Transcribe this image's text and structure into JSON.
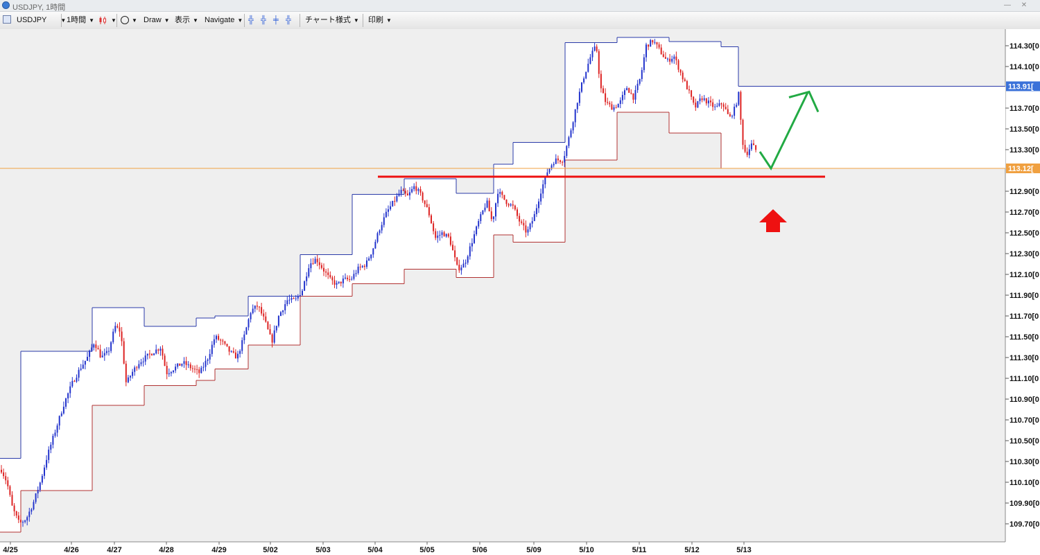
{
  "window": {
    "title": "USDJPY, 1時間"
  },
  "toolbar": {
    "symbol": "USDJPY",
    "timeframe": "1時間",
    "draw": "Draw",
    "view": "表示",
    "navigate": "Navigate",
    "chart_style": "チャート様式",
    "print": "印刷"
  },
  "icons": {
    "app": "app-icon",
    "candle": "candlestick-icon",
    "circle": "circle-tool-icon",
    "crosshair": "crosshair-icon",
    "minimize": "minimize-icon",
    "close": "close-icon"
  },
  "colors": {
    "bull": "#2233cc",
    "bear": "#dd2222",
    "box_top": "#2a3aa8",
    "box_bottom": "#b03030",
    "support": "#ee1111",
    "projection": "#22aa44",
    "current_price": "#f0a040",
    "box_label": "#3b72d9"
  },
  "chart_data": {
    "type": "candlestick",
    "symbol": "USDJPY",
    "timeframe": "1時間",
    "ylim": [
      109.55,
      114.4
    ],
    "y_ticks": [
      {
        "value": 114.3,
        "label": "114.30[0"
      },
      {
        "value": 114.1,
        "label": "114.10[0"
      },
      {
        "value": 113.7,
        "label": "113.70[0"
      },
      {
        "value": 113.5,
        "label": "113.50[0"
      },
      {
        "value": 113.3,
        "label": "113.30[0"
      },
      {
        "value": 112.9,
        "label": "112.90[0"
      },
      {
        "value": 112.7,
        "label": "112.70[0"
      },
      {
        "value": 112.5,
        "label": "112.50[0"
      },
      {
        "value": 112.3,
        "label": "112.30[0"
      },
      {
        "value": 112.1,
        "label": "112.10[0"
      },
      {
        "value": 111.9,
        "label": "111.90[0"
      },
      {
        "value": 111.7,
        "label": "111.70[0"
      },
      {
        "value": 111.5,
        "label": "111.50[0"
      },
      {
        "value": 111.3,
        "label": "111.30[0"
      },
      {
        "value": 111.1,
        "label": "111.10[0"
      },
      {
        "value": 110.9,
        "label": "110.90[0"
      },
      {
        "value": 110.7,
        "label": "110.70[0"
      },
      {
        "value": 110.5,
        "label": "110.50[0"
      },
      {
        "value": 110.3,
        "label": "110.30[0"
      },
      {
        "value": 110.1,
        "label": "110.10[0"
      },
      {
        "value": 109.9,
        "label": "109.90[0"
      },
      {
        "value": 109.7,
        "label": "109.70[0"
      }
    ],
    "x_labels": [
      "4/25",
      "4/26",
      "4/27",
      "4/28",
      "4/29",
      "5/02",
      "5/03",
      "5/04",
      "5/05",
      "5/06",
      "5/09",
      "5/10",
      "5/11",
      "5/12",
      "5/13"
    ],
    "high_box_value": 113.91,
    "high_box_label": "113.91[",
    "current_price": 113.12,
    "current_price_label": "113.12[",
    "support_level": 113.04,
    "projection": [
      {
        "t": "5/13",
        "v": 113.28
      },
      {
        "t": "5/13",
        "v": 113.12
      },
      {
        "t": "5/13",
        "v": 113.85
      }
    ],
    "daily_boxes": [
      {
        "day": "4/25",
        "high": 110.33,
        "low": 109.62
      },
      {
        "day": "4/26",
        "high": 111.36,
        "low": 110.02
      },
      {
        "day": "4/27",
        "high": 111.78,
        "low": 110.84
      },
      {
        "day": "4/28",
        "high": 111.6,
        "low": 111.03
      },
      {
        "day": "4/29",
        "high": 111.68,
        "low": 111.08
      },
      {
        "day": "5/02",
        "high": 111.7,
        "low": 111.19
      },
      {
        "day": "5/02b",
        "high": 111.89,
        "low": 111.42
      },
      {
        "day": "5/03",
        "high": 112.29,
        "low": 111.89
      },
      {
        "day": "5/04",
        "high": 112.87,
        "low": 112.01
      },
      {
        "day": "5/05",
        "high": 113.02,
        "low": 112.15
      },
      {
        "day": "5/06",
        "high": 112.88,
        "low": 112.07
      },
      {
        "day": "5/06b",
        "high": 113.16,
        "low": 112.48
      },
      {
        "day": "5/09",
        "high": 113.37,
        "low": 112.41
      },
      {
        "day": "5/10",
        "high": 114.33,
        "low": 113.2
      },
      {
        "day": "5/11",
        "high": 114.38,
        "low": 113.66
      },
      {
        "day": "5/11b",
        "high": 114.34,
        "low": 113.46
      },
      {
        "day": "5/12",
        "high": 114.29,
        "low": 113.12
      },
      {
        "day": "5/13",
        "high": 113.91,
        "low": 113.12
      }
    ],
    "price_path": [
      [
        0,
        110.25
      ],
      [
        10,
        110.1
      ],
      [
        18,
        109.85
      ],
      [
        28,
        109.7
      ],
      [
        38,
        109.75
      ],
      [
        48,
        109.9
      ],
      [
        58,
        110.1
      ],
      [
        68,
        110.35
      ],
      [
        80,
        110.6
      ],
      [
        92,
        110.85
      ],
      [
        104,
        111.05
      ],
      [
        116,
        111.2
      ],
      [
        126,
        111.3
      ],
      [
        136,
        111.45
      ],
      [
        146,
        111.3
      ],
      [
        156,
        111.35
      ],
      [
        166,
        111.6
      ],
      [
        174,
        111.55
      ],
      [
        182,
        111.05
      ],
      [
        190,
        111.15
      ],
      [
        200,
        111.25
      ],
      [
        210,
        111.3
      ],
      [
        220,
        111.35
      ],
      [
        232,
        111.4
      ],
      [
        240,
        111.15
      ],
      [
        252,
        111.2
      ],
      [
        264,
        111.25
      ],
      [
        276,
        111.2
      ],
      [
        288,
        111.15
      ],
      [
        300,
        111.3
      ],
      [
        310,
        111.5
      ],
      [
        320,
        111.45
      ],
      [
        332,
        111.35
      ],
      [
        342,
        111.3
      ],
      [
        352,
        111.5
      ],
      [
        362,
        111.75
      ],
      [
        372,
        111.8
      ],
      [
        382,
        111.65
      ],
      [
        392,
        111.45
      ],
      [
        402,
        111.7
      ],
      [
        414,
        111.85
      ],
      [
        426,
        111.85
      ],
      [
        436,
        111.95
      ],
      [
        446,
        112.2
      ],
      [
        456,
        112.25
      ],
      [
        466,
        112.15
      ],
      [
        476,
        112.05
      ],
      [
        486,
        112.0
      ],
      [
        496,
        112.05
      ],
      [
        506,
        112.05
      ],
      [
        516,
        112.15
      ],
      [
        528,
        112.2
      ],
      [
        538,
        112.35
      ],
      [
        548,
        112.55
      ],
      [
        558,
        112.7
      ],
      [
        568,
        112.8
      ],
      [
        578,
        112.9
      ],
      [
        588,
        112.85
      ],
      [
        598,
        112.95
      ],
      [
        608,
        112.85
      ],
      [
        618,
        112.7
      ],
      [
        628,
        112.45
      ],
      [
        638,
        112.5
      ],
      [
        648,
        112.45
      ],
      [
        660,
        112.15
      ],
      [
        670,
        112.2
      ],
      [
        680,
        112.4
      ],
      [
        690,
        112.6
      ],
      [
        702,
        112.8
      ],
      [
        710,
        112.6
      ],
      [
        718,
        112.9
      ],
      [
        730,
        112.8
      ],
      [
        740,
        112.75
      ],
      [
        750,
        112.6
      ],
      [
        760,
        112.5
      ],
      [
        770,
        112.65
      ],
      [
        780,
        112.9
      ],
      [
        790,
        113.1
      ],
      [
        800,
        113.2
      ],
      [
        812,
        113.2
      ],
      [
        822,
        113.45
      ],
      [
        832,
        113.75
      ],
      [
        842,
        114.0
      ],
      [
        852,
        114.2
      ],
      [
        860,
        114.3
      ],
      [
        866,
        113.9
      ],
      [
        874,
        113.75
      ],
      [
        884,
        113.7
      ],
      [
        894,
        113.75
      ],
      [
        904,
        113.9
      ],
      [
        914,
        113.8
      ],
      [
        924,
        114.0
      ],
      [
        932,
        114.3
      ],
      [
        942,
        114.35
      ],
      [
        952,
        114.25
      ],
      [
        962,
        114.15
      ],
      [
        972,
        114.2
      ],
      [
        984,
        114.0
      ],
      [
        994,
        113.85
      ],
      [
        1002,
        113.7
      ],
      [
        1012,
        113.8
      ],
      [
        1022,
        113.75
      ],
      [
        1032,
        113.7
      ],
      [
        1042,
        113.75
      ],
      [
        1052,
        113.6
      ],
      [
        1060,
        113.7
      ],
      [
        1066,
        113.85
      ],
      [
        1070,
        113.4
      ],
      [
        1076,
        113.25
      ],
      [
        1084,
        113.35
      ],
      [
        1092,
        113.28
      ]
    ]
  }
}
